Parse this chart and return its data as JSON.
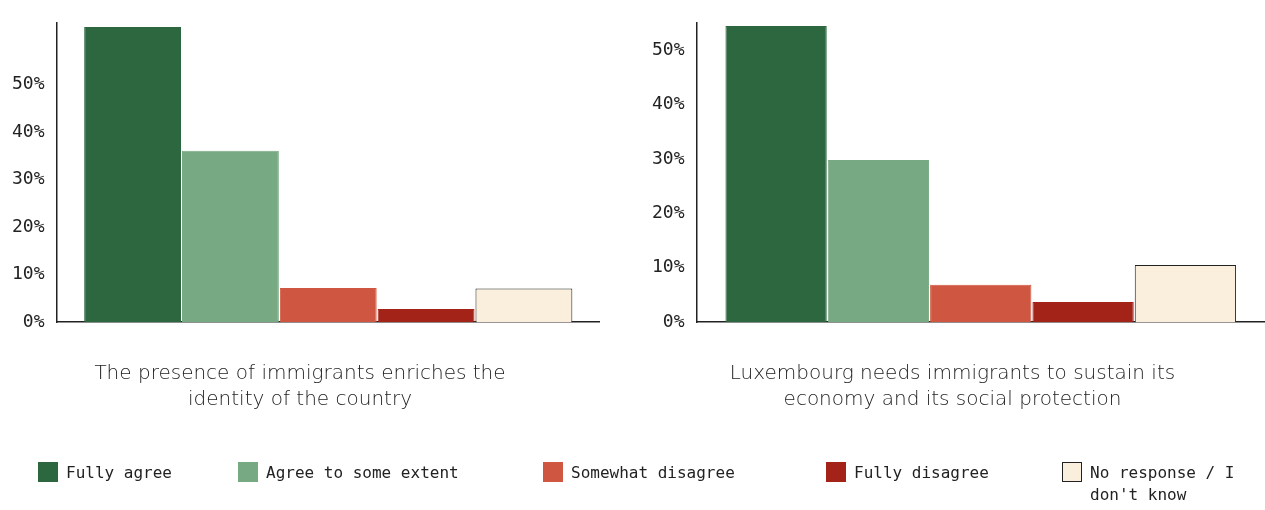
{
  "chart_data": [
    {
      "type": "bar",
      "xlabel": "The presence of immigrants enriches the identity of the country",
      "categories": [
        null
      ],
      "series": [
        {
          "name": "Fully agree",
          "color": "#2d673f",
          "values": [
            62.1
          ]
        },
        {
          "name": "Agree to some extent",
          "color": "#77a983",
          "values": [
            36.1
          ]
        },
        {
          "name": "Somewhat disagree",
          "color": "#cf5640",
          "values": [
            7.2
          ]
        },
        {
          "name": "Fully disagree",
          "color": "#a32318",
          "values": [
            2.8
          ]
        },
        {
          "name": "No response / I don't know",
          "color": "#faefdc",
          "values": [
            7.1
          ]
        }
      ],
      "ylim": [
        0,
        63
      ],
      "yticks": [
        {
          "value": 0,
          "label": "0%"
        },
        {
          "value": 10,
          "label": "10%"
        },
        {
          "value": 20,
          "label": "20%"
        },
        {
          "value": 30,
          "label": "30%"
        },
        {
          "value": 40,
          "label": "40%"
        },
        {
          "value": 50,
          "label": "50%"
        }
      ],
      "tick_labels": "y",
      "legend": "bottom"
    },
    {
      "type": "bar",
      "xlabel": "Luxembourg needs immigrants to sustain its economy and its social protection",
      "categories": [
        null
      ],
      "series": [
        {
          "color": "#2d673f",
          "values": [
            54.4
          ]
        },
        {
          "color": "#77a983",
          "values": [
            29.8
          ]
        },
        {
          "color": "#cf5640",
          "values": [
            6.9
          ]
        },
        {
          "color": "#a32318",
          "values": [
            3.7
          ]
        },
        {
          "color": "#faefdc",
          "values": [
            10.5
          ]
        }
      ],
      "ylim": [
        0,
        55
      ],
      "yticks": [
        {
          "value": 0,
          "label": "0%"
        },
        {
          "value": 10,
          "label": "10%"
        },
        {
          "value": 20,
          "label": "20%"
        },
        {
          "value": 30,
          "label": "30%"
        },
        {
          "value": 40,
          "label": "40%"
        },
        {
          "value": 50,
          "label": "50%"
        }
      ],
      "tick_labels": "y"
    }
  ]
}
